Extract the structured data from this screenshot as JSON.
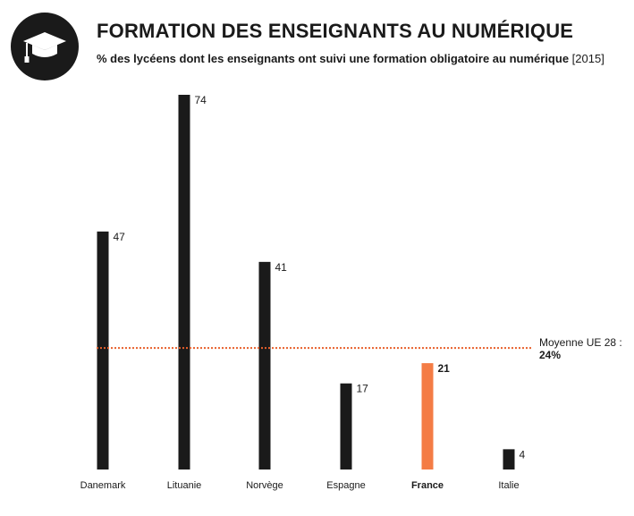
{
  "header": {
    "title": "FORMATION DES ENSEIGNANTS AU NUMÉRIQUE",
    "subtitle": "% des lycéens dont les enseignants ont suivi une formation obligatoire au numérique",
    "year": "[2015]",
    "icon": "graduation-cap-icon"
  },
  "chart_data": {
    "type": "bar",
    "title": "FORMATION DES ENSEIGNANTS AU NUMÉRIQUE",
    "subtitle": "% des lycéens dont les enseignants ont suivi une formation obligatoire au numérique [2015]",
    "categories": [
      "Danemark",
      "Lituanie",
      "Norvège",
      "Espagne",
      "France",
      "Italie"
    ],
    "values": [
      47,
      74,
      41,
      17,
      21,
      4
    ],
    "highlight": "France",
    "ylim": [
      0,
      74
    ],
    "grid": false,
    "average": {
      "label": "Moyenne UE 28 :",
      "value_label": "24%",
      "value": 24
    },
    "colors": {
      "bar": "#1a1a1a",
      "highlight": "#f47c45",
      "average_line": "#e8602c"
    }
  }
}
